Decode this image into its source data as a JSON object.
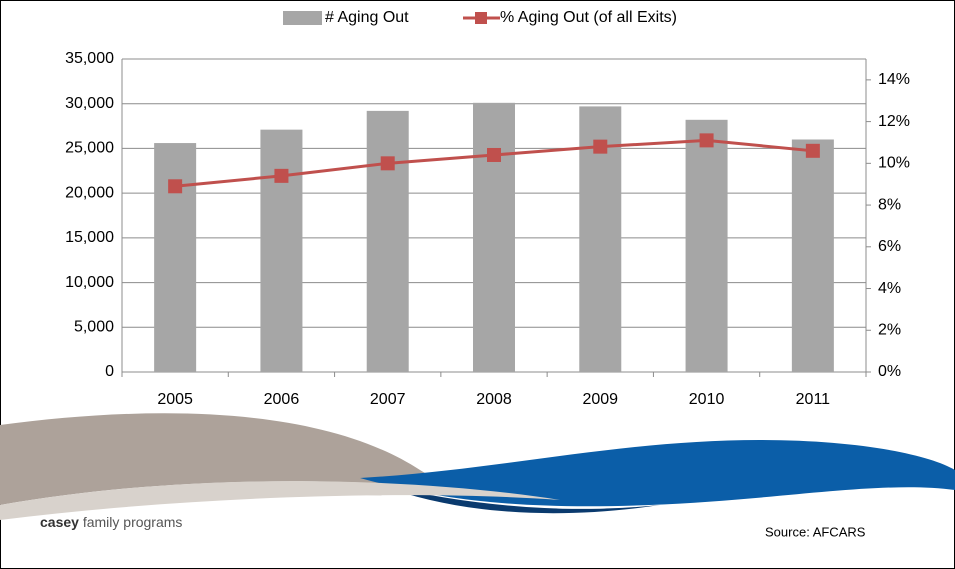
{
  "chart_data": {
    "type": "bar_line",
    "categories": [
      "2005",
      "2006",
      "2007",
      "2008",
      "2009",
      "2010",
      "2011"
    ],
    "series": [
      {
        "name": "# Aging Out",
        "color": "#a6a6a6",
        "type": "bar",
        "values": [
          25600,
          27100,
          29200,
          30100,
          29700,
          28200,
          26000
        ]
      },
      {
        "name": "% Aging Out (of all Exits)",
        "color": "#c0504d",
        "type": "line",
        "axis": "y2",
        "values": [
          8.9,
          9.4,
          10.0,
          10.4,
          10.8,
          11.1,
          10.6
        ]
      }
    ],
    "ylim": [
      0,
      35000
    ],
    "yticks": [
      0,
      {
        "value": 5000,
        "label": "5,000"
      },
      {
        "value": 10000,
        "label": "10,000"
      },
      {
        "value": 15000,
        "label": "15,000"
      },
      {
        "value": 20000,
        "label": "20,000"
      },
      {
        "value": 25000,
        "label": "25,000"
      },
      {
        "value": 30000,
        "label": "30,000"
      },
      {
        "value": 35000,
        "label": "35,000"
      }
    ],
    "y2lim": [
      0,
      15
    ],
    "y2ticks": [
      {
        "value": 0,
        "label": "0%"
      },
      {
        "value": 2,
        "label": "2%"
      },
      {
        "value": 4,
        "label": "4%"
      },
      {
        "value": 6,
        "label": "6%"
      },
      {
        "value": 8,
        "label": "8%"
      },
      {
        "value": 10,
        "label": "10%"
      },
      {
        "value": 12,
        "label": "12%"
      },
      {
        "value": 14,
        "label": "14%"
      }
    ],
    "grid": true,
    "legend": "top"
  },
  "footer": {
    "brand_bold": "casey",
    "brand_rest": "family programs",
    "source": "Source: AFCARS"
  }
}
